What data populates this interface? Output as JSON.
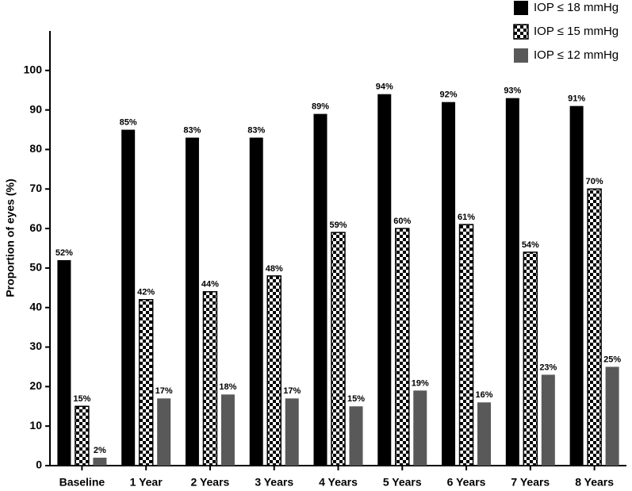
{
  "chart_data": {
    "type": "bar",
    "y_label": "Proportion of eyes (%)",
    "categories": [
      "Baseline",
      "1 Year",
      "2 Years",
      "3 Years",
      "4 Years",
      "5 Years",
      "6 Years",
      "7 Years",
      "8 Years"
    ],
    "series": [
      {
        "name": "IOP ≤ 18 mmHg",
        "color": "#000000",
        "pattern": "solid",
        "values": [
          52,
          85,
          83,
          83,
          89,
          94,
          92,
          93,
          91
        ],
        "value_labels": [
          "52%",
          "85%",
          "83%",
          "83%",
          "89%",
          "94%",
          "92%",
          "93%",
          "91%"
        ]
      },
      {
        "name": "IOP ≤ 15 mmHg",
        "color": "#000000",
        "pattern": "checker",
        "values": [
          15,
          42,
          44,
          48,
          59,
          60,
          61,
          54,
          70
        ],
        "value_labels": [
          "15%",
          "42%",
          "44%",
          "48%",
          "59%",
          "60%",
          "61%",
          "54%",
          "70%"
        ]
      },
      {
        "name": "IOP ≤ 12 mmHg",
        "color": "#595959",
        "pattern": "solid",
        "values": [
          2,
          17,
          18,
          17,
          15,
          19,
          16,
          23,
          25
        ],
        "value_labels": [
          "2%",
          "17%",
          "18%",
          "17%",
          "15%",
          "19%",
          "16%",
          "23%",
          "25%"
        ]
      }
    ],
    "ylim": [
      0,
      110
    ],
    "yticks": [
      0,
      10,
      20,
      30,
      40,
      50,
      60,
      70,
      80,
      90,
      100
    ],
    "legend": "top-right",
    "grid": false
  }
}
